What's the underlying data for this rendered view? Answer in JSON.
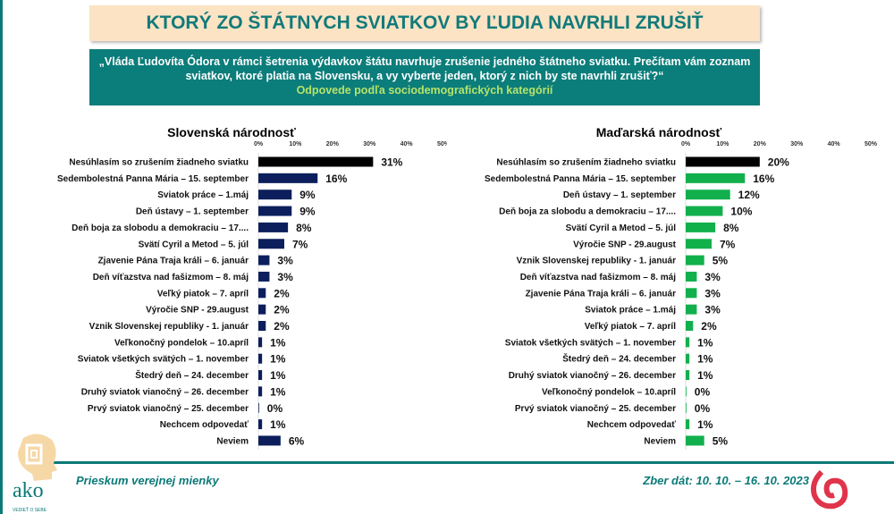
{
  "header": {
    "title": "KTORÝ ZO ŠTÁTNYCH SVIATKOV BY ĽUDIA NAVRHLI ZRUŠIŤ",
    "question": "„Vláda Ľudovíta Ódora v rámci šetrenia výdavkov štátu navrhuje zrušenie jedného štátneho sviatku. Prečítam vám zoznam sviatkov,  ktoré platia na Slovensku, a vy vyberte jeden,  ktorý z nich by ste navrhli zrušiť?“",
    "subtitle": "Odpovede podľa sociodemografických kategórií"
  },
  "footer": {
    "left": "Prieskum verejnej mienky",
    "right": "Zber dát: 10. 10. – 16. 10. 2023",
    "logo_text": "ako",
    "logo_tagline": "VEDIEŤ O SEBE"
  },
  "chart_data": [
    {
      "type": "bar",
      "orientation": "horizontal",
      "title": "Slovenská národnosť",
      "xlim": [
        0,
        50
      ],
      "xticks": [
        "0%",
        "10%",
        "20%",
        "30%",
        "40%",
        "50%"
      ],
      "bar_color": "#0c1f5c",
      "highlight_color": "#000000",
      "categories": [
        "Nesúhlasím so zrušením žiadneho sviatku",
        "Sedembolestná Panna Mária – 15. september",
        "Sviatok práce – 1.máj",
        "Deň ústavy – 1. september",
        "Deň boja za slobodu a demokraciu – 17....",
        "Svätí Cyril a Metod – 5. júl",
        "Zjavenie Pána Traja králi – 6. január",
        "Deň víťazstva nad fašizmom – 8. máj",
        "Veľký piatok – 7. apríl",
        "Výročie SNP - 29.august",
        "Vznik Slovenskej republiky - 1. január",
        "Veľkonočný pondelok – 10.apríl",
        "Sviatok všetkých svätých – 1. november",
        "Štedrý deň – 24. december",
        "Druhý sviatok vianočný – 26. december",
        "Prvý sviatok vianočný – 25. december",
        "Nechcem odpovedať",
        "Neviem"
      ],
      "values": [
        31,
        16,
        9,
        9,
        8,
        7,
        3,
        3,
        2,
        2,
        2,
        1,
        1,
        1,
        1,
        0,
        1,
        6
      ]
    },
    {
      "type": "bar",
      "orientation": "horizontal",
      "title": "Maďarská národnosť",
      "xlim": [
        0,
        50
      ],
      "xticks": [
        "0%",
        "10%",
        "20%",
        "30%",
        "40%",
        "50%"
      ],
      "bar_color": "#12b04c",
      "highlight_color": "#000000",
      "categories": [
        "Nesúhlasím so zrušením žiadneho sviatku",
        "Sedembolestná Panna Mária – 15. september",
        "Deň ústavy – 1. september",
        "Deň boja za slobodu a demokraciu – 17....",
        "Svätí Cyril a Metod – 5. júl",
        "Výročie SNP - 29.august",
        "Vznik Slovenskej republiky - 1. január",
        "Deň víťazstva nad fašizmom – 8. máj",
        "Zjavenie Pána Traja králi – 6. január",
        "Sviatok práce – 1.máj",
        "Veľký piatok – 7. apríl",
        "Sviatok všetkých svätých – 1. november",
        "Štedrý deň – 24. december",
        "Druhý sviatok vianočný – 26. december",
        "Veľkonočný pondelok – 10.apríl",
        "Prvý sviatok vianočný – 25. december",
        "Nechcem odpovedať",
        "Neviem"
      ],
      "values": [
        20,
        16,
        12,
        10,
        8,
        7,
        5,
        3,
        3,
        3,
        2,
        1,
        1,
        1,
        0,
        0,
        1,
        5
      ]
    }
  ]
}
